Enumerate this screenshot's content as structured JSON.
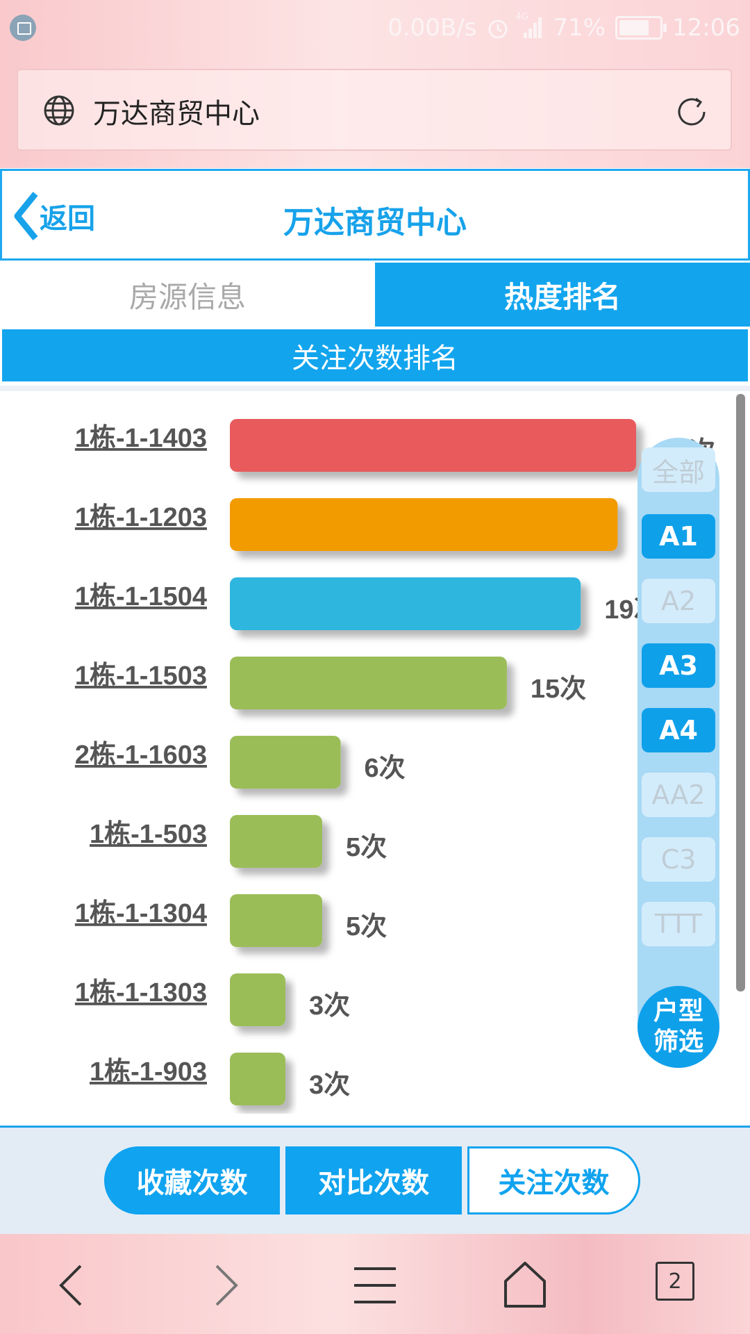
{
  "status_bar": {
    "speed": "0.00B/s",
    "network": "4G",
    "battery": "71%",
    "time": "12:06"
  },
  "browser": {
    "url_title": "万达商贸中心",
    "tab_count": "2"
  },
  "header": {
    "back_label": "返回",
    "title": "万达商贸中心"
  },
  "tabs": [
    {
      "label": "房源信息",
      "active": false
    },
    {
      "label": "热度排名",
      "active": true
    }
  ],
  "section_title": "关注次数排名",
  "chart_data": {
    "type": "bar",
    "orientation": "horizontal",
    "categories": [
      "1栋-1-1403",
      "1栋-1-1203",
      "1栋-1-1504",
      "1栋-1-1503",
      "2栋-1-1603",
      "1栋-1-503",
      "1栋-1-1304",
      "1栋-1-1303",
      "1栋-1-903"
    ],
    "values": [
      22,
      21,
      19,
      15,
      6,
      5,
      5,
      3,
      3
    ],
    "value_labels": [
      "22次",
      "21次",
      "19次",
      "15次",
      "6次",
      "5次",
      "5次",
      "3次",
      "3次"
    ],
    "colors": [
      "#e85a5b",
      "#f29b00",
      "#2db6de",
      "#9bbd59",
      "#9bbd59",
      "#9bbd59",
      "#9bbd59",
      "#9bbd59",
      "#9bbd59"
    ],
    "grid": false
  },
  "filter": {
    "items": [
      {
        "label": "全部",
        "selected": false
      },
      {
        "label": "A1",
        "selected": true
      },
      {
        "label": "A2",
        "selected": false
      },
      {
        "label": "A3",
        "selected": true
      },
      {
        "label": "A4",
        "selected": true
      },
      {
        "label": "AA2",
        "selected": false
      },
      {
        "label": "C3",
        "selected": false
      },
      {
        "label": "TTT",
        "selected": false
      }
    ],
    "button_label_line1": "户型",
    "button_label_line2": "筛选"
  },
  "bottom_buttons": [
    "收藏次数",
    "对比次数",
    "关注次数"
  ],
  "icons": {
    "globe": "globe-icon",
    "reload": "reload-icon",
    "back": "chevron-left-icon",
    "nav_back": "arrow-left-icon",
    "nav_forward": "arrow-right-icon",
    "menu": "menu-icon",
    "home": "home-icon",
    "tabs": "tabs-icon"
  }
}
